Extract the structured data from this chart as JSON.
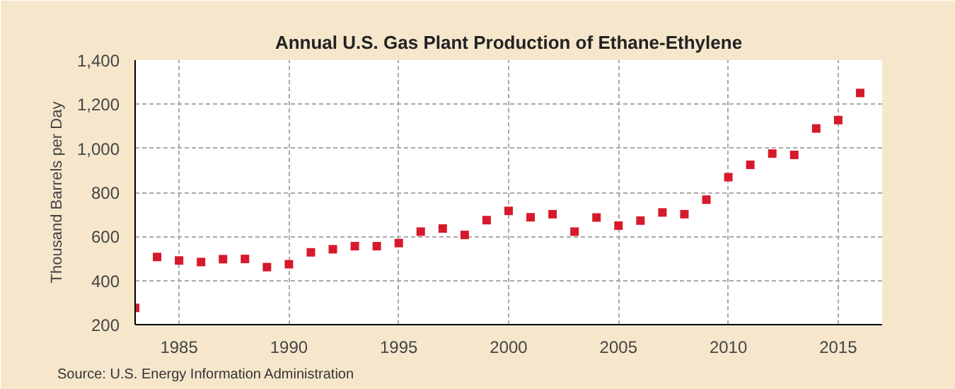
{
  "chart_data": {
    "type": "scatter",
    "title": "Annual U.S. Gas Plant Production of Ethane-Ethylene",
    "ylabel": "Thousand Barrels per Day",
    "x": [
      1983,
      1984,
      1985,
      1986,
      1987,
      1988,
      1989,
      1990,
      1991,
      1992,
      1993,
      1994,
      1995,
      1996,
      1997,
      1998,
      1999,
      2000,
      2001,
      2002,
      2003,
      2004,
      2005,
      2006,
      2007,
      2008,
      2009,
      2010,
      2011,
      2012,
      2013,
      2014,
      2015,
      2016
    ],
    "series": [
      {
        "color": "#d7192c",
        "values": [
          276,
          507,
          491,
          484,
          497,
          498,
          461,
          474,
          528,
          542,
          556,
          556,
          570,
          622,
          636,
          607,
          674,
          716,
          687,
          701,
          622,
          686,
          649,
          672,
          709,
          701,
          767,
          869,
          925,
          976,
          970,
          1090,
          1128,
          1251
        ]
      }
    ],
    "xlim": [
      1983,
      2017
    ],
    "xticks": [
      1985,
      1990,
      1995,
      2000,
      2005,
      2010,
      2015
    ],
    "ylim": [
      200,
      1400
    ],
    "yticks": [
      {
        "value": 200,
        "label": "200"
      },
      {
        "value": 400,
        "label": "400"
      },
      {
        "value": 600,
        "label": "600"
      },
      {
        "value": 800,
        "label": "800"
      },
      {
        "value": 1000,
        "label": "1,000"
      },
      {
        "value": 1200,
        "label": "1,200"
      },
      {
        "value": 1400,
        "label": "1,400"
      }
    ],
    "grid": true,
    "marker": "square",
    "annotations": [
      "Source: U.S. Energy Information Administration"
    ]
  }
}
